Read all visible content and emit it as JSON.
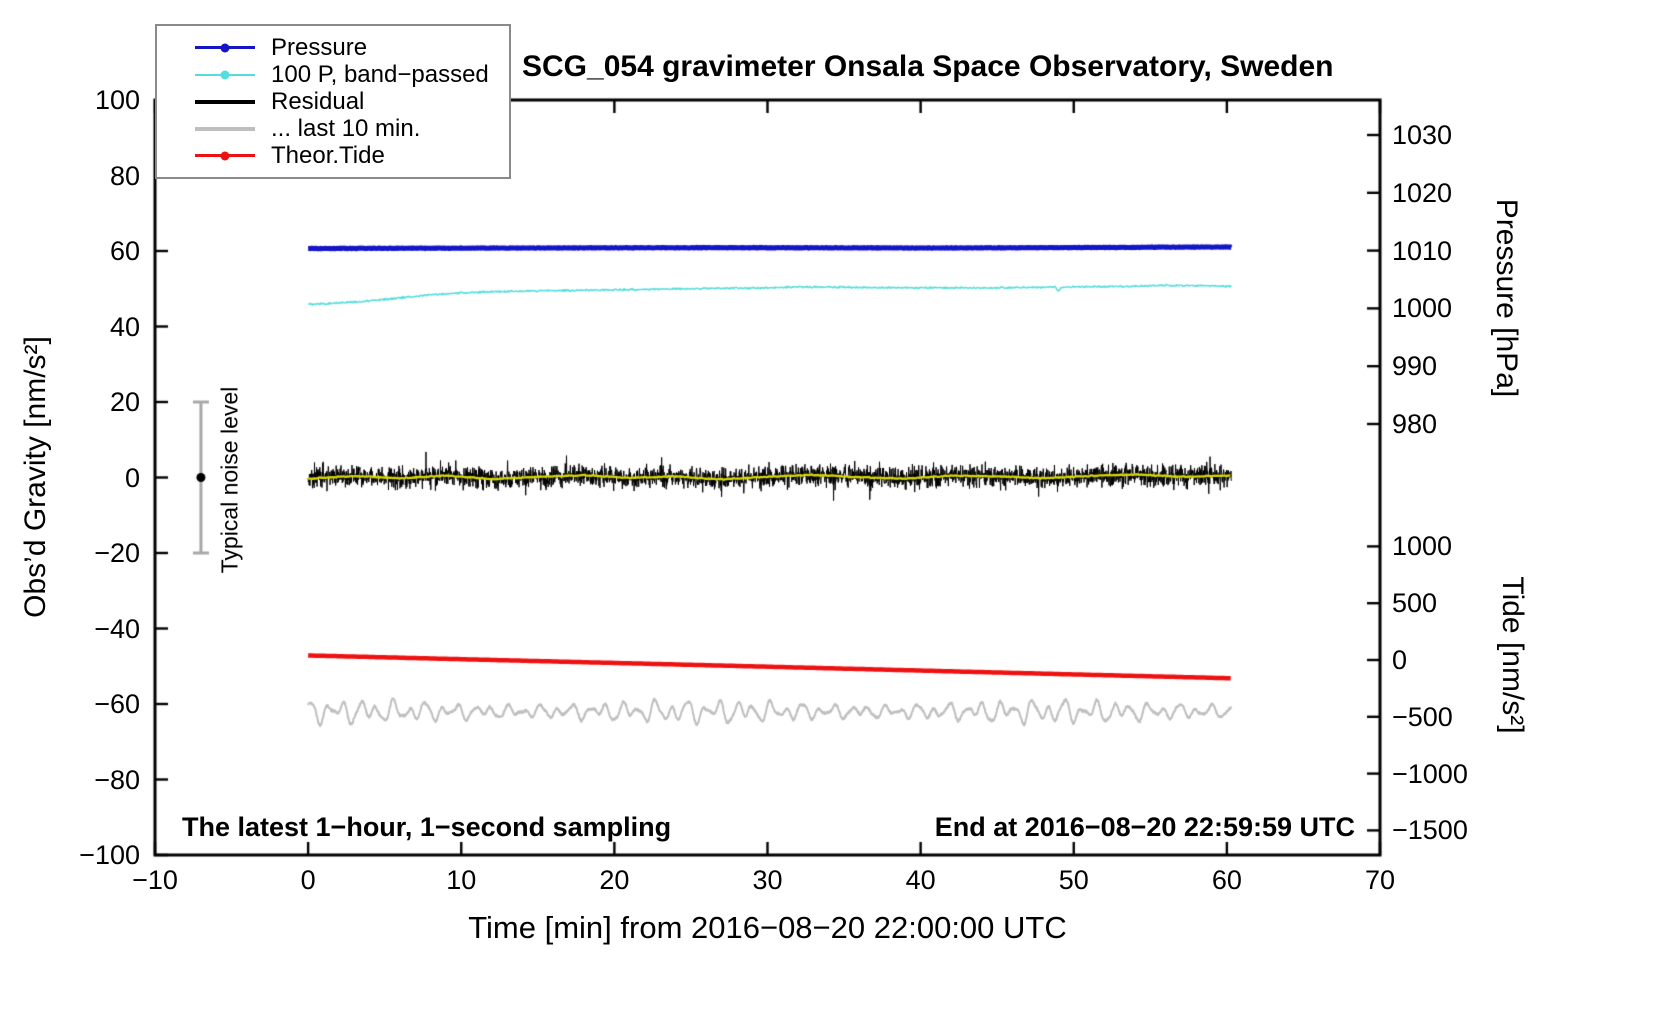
{
  "chart_data": {
    "type": "line",
    "title": "SCG_054 gravimeter Onsala Space Observatory, Sweden",
    "xlabel": "Time [min] from 2016−08−20 22:00:00 UTC",
    "x_range": [
      -10,
      70
    ],
    "x_ticks": [
      -10,
      0,
      10,
      20,
      30,
      40,
      50,
      60,
      70
    ],
    "left_axis": {
      "label": "Obs’d Gravity [nm/s²]",
      "range": [
        -100,
        100
      ],
      "ticks": [
        -100,
        -80,
        -60,
        -40,
        -20,
        0,
        20,
        40,
        60,
        80,
        100
      ]
    },
    "pressure_axis": {
      "label": "Pressure [hPa]",
      "units": "hPa",
      "ticks": [
        1030,
        1020,
        1010,
        1000,
        990,
        980
      ]
    },
    "tide_axis": {
      "label": "Tide [nm/s²]",
      "units": "nm/s²",
      "ticks": [
        1000,
        500,
        0,
        -500,
        -1000,
        -1500
      ]
    },
    "notes": {
      "sampling": "The latest 1−hour, 1−second sampling",
      "end": "End at 2016−08−20 22:59:59 UTC"
    },
    "error_bar": {
      "label": "Typical noise level",
      "x": -7,
      "center": 0,
      "half_height": 20
    },
    "legend": [
      {
        "label": "Pressure",
        "color": "#1515c8",
        "dot": true,
        "lw": 3
      },
      {
        "label": "100 P, band−passed",
        "color": "#55dcdc",
        "dot": true,
        "lw": 2
      },
      {
        "label": "Residual",
        "color": "#000000",
        "dot": false,
        "lw": 4
      },
      {
        "label": "... last 10 min.",
        "color": "#bfbfbf",
        "dot": false,
        "lw": 4
      },
      {
        "label": "Theor.Tide",
        "color": "#ee1111",
        "dot": true,
        "lw": 3
      }
    ],
    "series": [
      {
        "name": "Pressure",
        "axis": "pressure",
        "color": "#1515c8",
        "width": 5,
        "step": 0.05,
        "noise": 0.07,
        "x": [
          0,
          5,
          10,
          15,
          20,
          25,
          30,
          35,
          40,
          45,
          50,
          55,
          60,
          60.3
        ],
        "y": [
          1010.35,
          1010.4,
          1010.42,
          1010.45,
          1010.48,
          1010.5,
          1010.5,
          1010.48,
          1010.45,
          1010.48,
          1010.52,
          1010.58,
          1010.62,
          1010.62
        ]
      },
      {
        "name": "100 P, band−passed",
        "axis": "gravity",
        "color": "#55dcdc",
        "width": 1.4,
        "step": 0.04,
        "noise": 0.3,
        "x": [
          0,
          1,
          2,
          3,
          4,
          5,
          6,
          7,
          8,
          9,
          10,
          12,
          14,
          16,
          18,
          20,
          22,
          24,
          26,
          28,
          30,
          32,
          34,
          36,
          38,
          40,
          42,
          44,
          46,
          48,
          48.8,
          49,
          49.2,
          50,
          52,
          54,
          56,
          58,
          60,
          60.3
        ],
        "y": [
          45.9,
          46.0,
          46.2,
          46.5,
          46.8,
          47.2,
          47.6,
          48.0,
          48.4,
          48.7,
          48.9,
          49.2,
          49.4,
          49.5,
          49.6,
          49.7,
          49.85,
          50.0,
          50.1,
          50.15,
          50.25,
          50.5,
          50.45,
          50.35,
          50.3,
          50.3,
          50.25,
          50.2,
          50.3,
          50.4,
          50.45,
          49.4,
          50.45,
          50.5,
          50.55,
          50.7,
          50.85,
          50.8,
          50.7,
          50.7
        ]
      },
      {
        "name": "Residual",
        "axis": "gravity",
        "color": "#000000",
        "width": 1,
        "kind": "noise",
        "base": "Residual lowpass",
        "amp": 2.4,
        "spike_prob": 0.015,
        "spike_amp": 13,
        "samples": 3620,
        "x_range": [
          0,
          60.3
        ]
      },
      {
        "name": "Residual lowpass",
        "axis": "gravity",
        "color": "#d8d800",
        "width": 2.3,
        "step": 0.08,
        "noise": 0.18,
        "x": [
          0,
          3,
          6,
          9,
          12,
          15,
          18,
          21,
          24,
          27,
          30,
          33,
          36,
          39,
          42,
          45,
          48,
          51,
          54,
          57,
          60,
          60.3
        ],
        "y": [
          -0.3,
          0.4,
          -0.2,
          0.5,
          -0.4,
          0.2,
          0.6,
          -0.1,
          0.3,
          -0.5,
          0.2,
          0.7,
          0.1,
          -0.3,
          0.5,
          0.3,
          -0.2,
          0.4,
          0.8,
          0.2,
          0.5,
          0.5
        ]
      },
      {
        "name": "... last 10 min.",
        "axis": "gravity",
        "color": "#bfbfbf",
        "width": 2,
        "kind": "oscillation",
        "mean": -62,
        "noise": 0.4,
        "x_range": [
          0,
          60.3
        ],
        "components": [
          {
            "period": 1.07,
            "amp": 1.5,
            "phase": 0.4
          },
          {
            "period": 1.9,
            "amp": 1.0,
            "phase": 1.7
          },
          {
            "period": 0.63,
            "amp": 0.5,
            "phase": 3.0
          }
        ],
        "amp_mod": {
          "period": 23,
          "depth": 0.3,
          "phase": 0.9
        }
      },
      {
        "name": "Theor.Tide",
        "axis": "tide",
        "color": "#ee1111",
        "width": 4.5,
        "step": 0.25,
        "noise": 0,
        "x": [
          0,
          10,
          20,
          30,
          40,
          50,
          60,
          60.3
        ],
        "y": [
          40,
          7,
          -26,
          -59,
          -93,
          -127,
          -160,
          -161
        ]
      }
    ]
  }
}
